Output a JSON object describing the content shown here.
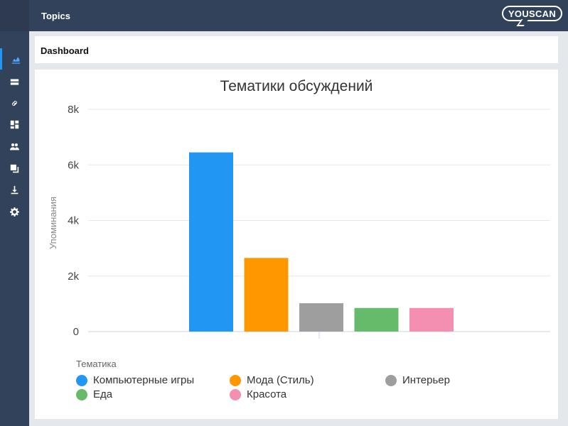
{
  "app": {
    "title": "Topics",
    "logo_text": "YOUSCAN"
  },
  "header": {
    "title": "Dashboard"
  },
  "sidebar": {
    "items": [
      {
        "icon": "analytics-icon",
        "active": true
      },
      {
        "icon": "list-icon",
        "active": false
      },
      {
        "icon": "link-icon",
        "active": false
      },
      {
        "icon": "dashboard-icon",
        "active": false
      },
      {
        "icon": "users-icon",
        "active": false
      },
      {
        "icon": "copy-icon",
        "active": false
      },
      {
        "icon": "download-icon",
        "active": false
      },
      {
        "icon": "gear-icon",
        "active": false
      }
    ]
  },
  "chart_data": {
    "type": "bar",
    "title": "Тематики обсуждений",
    "ylabel": "Упоминания",
    "legend_title": "Тематика",
    "ylim": [
      0,
      8000
    ],
    "yticks": [
      0,
      2000,
      4000,
      6000,
      8000
    ],
    "ytick_labels": [
      "0",
      "2k",
      "4k",
      "6k",
      "8k"
    ],
    "grid": true,
    "legend_position": "bottom",
    "series": [
      {
        "name": "Компьютерные игры",
        "value": 6450,
        "color": "#2196f3"
      },
      {
        "name": "Мода (Стиль)",
        "value": 2650,
        "color": "#ff9800"
      },
      {
        "name": "Интерьер",
        "value": 1020,
        "color": "#9e9e9e"
      },
      {
        "name": "Еда",
        "value": 850,
        "color": "#66bb6a"
      },
      {
        "name": "Красота",
        "value": 850,
        "color": "#f48fb1"
      }
    ]
  }
}
